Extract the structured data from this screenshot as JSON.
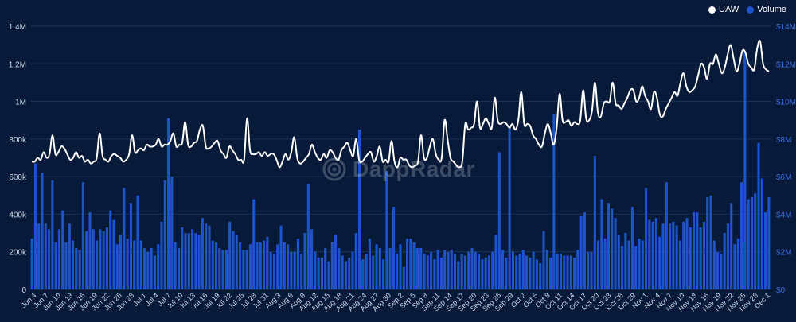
{
  "colors": {
    "background": "#071a3a",
    "grid": "#1c3157",
    "uaw_line": "#ffffff",
    "volume_bar": "#1d54cc",
    "left_axis_text": "#cfd8e8",
    "right_axis_text": "#3a6fe0"
  },
  "legend": {
    "uaw_label": "UAW",
    "volume_label": "Volume"
  },
  "watermark": {
    "text": "DappRadar",
    "icon": "dappradar-logo-icon"
  },
  "chart_data": {
    "type": "bar+line",
    "x_tick_labels": [
      "Jun 4",
      "Jun 7",
      "Jun 10",
      "Jun 13",
      "Jun 16",
      "Jun 19",
      "Jun 22",
      "Jun 25",
      "Jun 28",
      "Jul 1",
      "Jul 4",
      "Jul 7",
      "Jul 10",
      "Jul 13",
      "Jul 16",
      "Jul 19",
      "Jul 22",
      "Jul 25",
      "Jul 28",
      "Jul 31",
      "Aug 3",
      "Aug 6",
      "Aug 9",
      "Aug 12",
      "Aug 15",
      "Aug 18",
      "Aug 21",
      "Aug 24",
      "Aug 27",
      "Aug 30",
      "Sep 2",
      "Sep 5",
      "Sep 8",
      "Sep 11",
      "Sep 14",
      "Sep 17",
      "Sep 20",
      "Sep 23",
      "Sep 26",
      "Sep 29",
      "Oct 2",
      "Oct 5",
      "Oct 8",
      "Oct 11",
      "Oct 14",
      "Oct 17",
      "Oct 20",
      "Oct 23",
      "Oct 26",
      "Oct 29",
      "Nov 1",
      "Nov 4",
      "Nov 7",
      "Nov 10",
      "Nov 13",
      "Nov 16",
      "Nov 19",
      "Nov 22",
      "Nov 25",
      "Nov 28",
      "Dec 1"
    ],
    "left_axis": {
      "ticks": [
        "0",
        "200k",
        "400k",
        "600k",
        "800k",
        "1M",
        "1.2M",
        "1.4M"
      ],
      "range": [
        0,
        1400000
      ]
    },
    "right_axis": {
      "ticks": [
        "$0",
        "$2M",
        "$4M",
        "$6M",
        "$8M",
        "$10M",
        "$12M",
        "$14M"
      ],
      "range": [
        0,
        14000000
      ]
    },
    "grid": true,
    "legend_position": "top-right",
    "series": [
      {
        "name": "UAW",
        "type": "line",
        "axis": "left",
        "values": [
          680000,
          680000,
          700000,
          690000,
          730000,
          700000,
          720000,
          820000,
          720000,
          730000,
          760000,
          750000,
          720000,
          690000,
          700000,
          730000,
          700000,
          710000,
          680000,
          690000,
          670000,
          680000,
          700000,
          830000,
          710000,
          690000,
          680000,
          710000,
          720000,
          710000,
          700000,
          680000,
          690000,
          720000,
          820000,
          730000,
          740000,
          750000,
          740000,
          770000,
          760000,
          760000,
          770000,
          800000,
          760000,
          770000,
          770000,
          790000,
          830000,
          760000,
          770000,
          780000,
          890000,
          770000,
          760000,
          780000,
          790000,
          850000,
          870000,
          760000,
          750000,
          760000,
          780000,
          790000,
          740000,
          720000,
          700000,
          760000,
          740000,
          720000,
          690000,
          690000,
          690000,
          910000,
          740000,
          720000,
          720000,
          730000,
          710000,
          730000,
          710000,
          720000,
          720000,
          690000,
          650000,
          680000,
          720000,
          690000,
          730000,
          810000,
          700000,
          670000,
          680000,
          700000,
          720000,
          770000,
          730000,
          700000,
          690000,
          720000,
          700000,
          740000,
          730000,
          700000,
          690000,
          740000,
          760000,
          780000,
          740000,
          710000,
          800000,
          690000,
          680000,
          700000,
          720000,
          730000,
          680000,
          710000,
          760000,
          680000,
          690000,
          680000,
          790000,
          680000,
          650000,
          700000,
          690000,
          690000,
          660000,
          650000,
          660000,
          680000,
          820000,
          700000,
          700000,
          760000,
          800000,
          720000,
          690000,
          700000,
          900000,
          800000,
          700000,
          680000,
          660000,
          650000,
          680000,
          880000,
          850000,
          860000,
          880000,
          1000000,
          860000,
          880000,
          910000,
          880000,
          860000,
          1020000,
          900000,
          880000,
          890000,
          880000,
          860000,
          880000,
          850000,
          900000,
          1050000,
          880000,
          880000,
          870000,
          820000,
          800000,
          770000,
          760000,
          830000,
          880000,
          830000,
          770000,
          860000,
          1040000,
          900000,
          890000,
          900000,
          870000,
          890000,
          880000,
          900000,
          1060000,
          910000,
          900000,
          950000,
          1100000,
          940000,
          920000,
          990000,
          1000000,
          1000000,
          1100000,
          990000,
          980000,
          960000,
          990000,
          1020000,
          1060000,
          1060000,
          1000000,
          1020000,
          1080000,
          1030000,
          1000000,
          960000,
          1050000,
          1020000,
          930000,
          920000,
          960000,
          990000,
          1020000,
          1050000,
          1030000,
          1100000,
          1150000,
          1080000,
          1050000,
          1060000,
          1080000,
          1140000,
          1200000,
          1180000,
          1120000,
          1200000,
          1200000,
          1250000,
          1200000,
          1150000,
          1180000,
          1250000,
          1300000,
          1230000,
          1160000,
          1200000,
          1270000,
          1260000,
          1200000,
          1180000,
          1170000,
          1280000,
          1320000,
          1200000,
          1170000,
          1160000
        ],
        "smoothing": "spline"
      },
      {
        "name": "Volume",
        "type": "bar",
        "axis": "right",
        "values": [
          2700000,
          6700000,
          3500000,
          6200000,
          3500000,
          3200000,
          5800000,
          2500000,
          3200000,
          4200000,
          2500000,
          3500000,
          2600000,
          2200000,
          2100000,
          5700000,
          3100000,
          4100000,
          3200000,
          2600000,
          3200000,
          3100000,
          3300000,
          4200000,
          3700000,
          2400000,
          2900000,
          5400000,
          2700000,
          4600000,
          2600000,
          5000000,
          2600000,
          2200000,
          2000000,
          2200000,
          1800000,
          2400000,
          3600000,
          5800000,
          9100000,
          6000000,
          2500000,
          2200000,
          3300000,
          3000000,
          3000000,
          3200000,
          3000000,
          2900000,
          3800000,
          3500000,
          3400000,
          2600000,
          2500000,
          2200000,
          2100000,
          2100000,
          3600000,
          3100000,
          2900000,
          2500000,
          2100000,
          2100000,
          2400000,
          4800000,
          2500000,
          2500000,
          2600000,
          2800000,
          2000000,
          1900000,
          2400000,
          3400000,
          2500000,
          2400000,
          2000000,
          2000000,
          2700000,
          1900000,
          3000000,
          5600000,
          3200000,
          2000000,
          1700000,
          1700000,
          2200000,
          1500000,
          2500000,
          2900000,
          2200000,
          1800000,
          1500000,
          1700000,
          2000000,
          3000000,
          8500000,
          1600000,
          1900000,
          2700000,
          1800000,
          2400000,
          2200000,
          1600000,
          6300000,
          2200000,
          4400000,
          1900000,
          2400000,
          1200000,
          2700000,
          2700000,
          2500000,
          2200000,
          2200000,
          1900000,
          1800000,
          2000000,
          1600000,
          2100000,
          1700000,
          2100000,
          2000000,
          2100000,
          1900000,
          1500000,
          1900000,
          1800000,
          2000000,
          2200000,
          2000000,
          1900000,
          1600000,
          1700000,
          1800000,
          2000000,
          2900000,
          7300000,
          2100000,
          1700000,
          8600000,
          2000000,
          1800000,
          1900000,
          2100000,
          1800000,
          1700000,
          2000000,
          1600000,
          1400000,
          3100000,
          2100000,
          1700000,
          9300000,
          1900000,
          1900000,
          1800000,
          1800000,
          1800000,
          1700000,
          2100000,
          3900000,
          4100000,
          2000000,
          2000000,
          7100000,
          2600000,
          4800000,
          2700000,
          4600000,
          4300000,
          3800000,
          2900000,
          2300000,
          3000000,
          2600000,
          4400000,
          2300000,
          2700000,
          2600000,
          5400000,
          3700000,
          3600000,
          3800000,
          2800000,
          3500000,
          5700000,
          3500000,
          3600000,
          3400000,
          2600000,
          3600000,
          3800000,
          3300000,
          4100000,
          4100000,
          3300000,
          3600000,
          4900000,
          5000000,
          2600000,
          2000000,
          1900000,
          3000000,
          3500000,
          4600000,
          2400000,
          2700000,
          5700000,
          12700000,
          4800000,
          4900000,
          5100000,
          7800000,
          5900000,
          4100000,
          4900000
        ]
      }
    ]
  }
}
